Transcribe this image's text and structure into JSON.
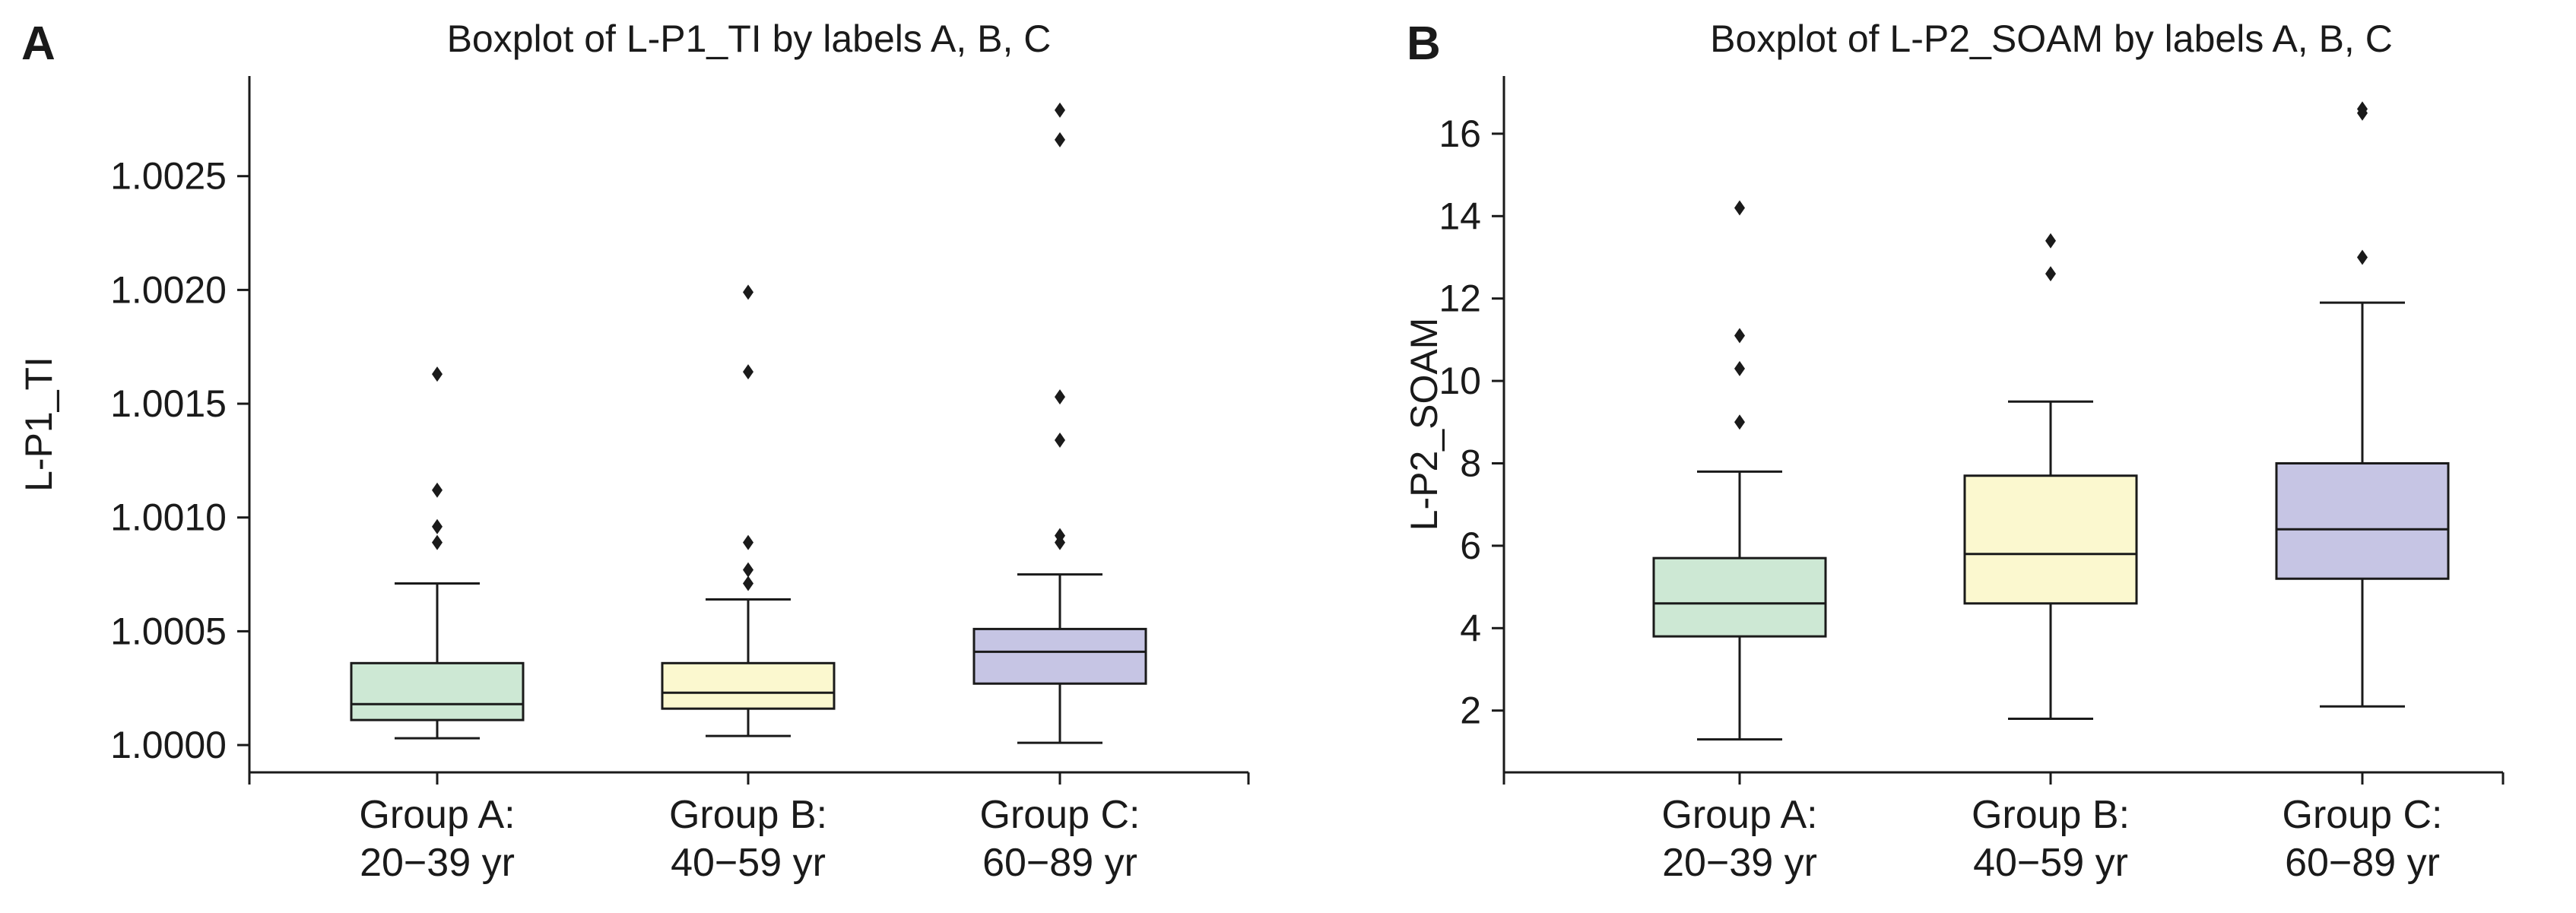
{
  "chart_data": [
    {
      "panel": "A",
      "type": "boxplot",
      "title": "Boxplot of L-P1_TI by labels A, B, C",
      "xlabel": "",
      "ylabel": "L-P1_TI",
      "ylim": [
        0.99988,
        1.00294
      ],
      "yticks": [
        1.0,
        1.0005,
        1.001,
        1.0015,
        1.002,
        1.0025
      ],
      "ytick_labels": [
        "1.0000",
        "1.0005",
        "1.0010",
        "1.0015",
        "1.0020",
        "1.0025"
      ],
      "grid": false,
      "categories": [
        {
          "line1": "Group A:",
          "line2": "20−39 yr"
        },
        {
          "line1": "Group B:",
          "line2": "40−59 yr"
        },
        {
          "line1": "Group C:",
          "line2": "60−89 yr"
        }
      ],
      "boxes": [
        {
          "whislo": 1.00003,
          "q1": 1.00011,
          "med": 1.00018,
          "q3": 1.00036,
          "whishi": 1.00071,
          "fliers": [
            1.00089,
            1.00096,
            1.00112,
            1.00163
          ],
          "color": "#cde8d4"
        },
        {
          "whislo": 1.00004,
          "q1": 1.00016,
          "med": 1.00023,
          "q3": 1.00036,
          "whishi": 1.00064,
          "fliers": [
            1.00071,
            1.00077,
            1.00089,
            1.00164,
            1.00199
          ],
          "color": "#fbf8cf"
        },
        {
          "whislo": 1.00001,
          "q1": 1.00027,
          "med": 1.00041,
          "q3": 1.00051,
          "whishi": 1.00075,
          "fliers": [
            1.00089,
            1.00092,
            1.00134,
            1.00153,
            1.00266,
            1.00279
          ],
          "color": "#c6c5e4"
        }
      ]
    },
    {
      "panel": "B",
      "type": "boxplot",
      "title": "Boxplot of L-P2_SOAM by labels A, B, C",
      "xlabel": "",
      "ylabel": "L-P2_SOAM",
      "ylim": [
        0.5,
        17.4
      ],
      "yticks": [
        2,
        4,
        6,
        8,
        10,
        12,
        14,
        16
      ],
      "ytick_labels": [
        "2",
        "4",
        "6",
        "8",
        "10",
        "12",
        "14",
        "16"
      ],
      "grid": false,
      "categories": [
        {
          "line1": "Group A:",
          "line2": "20−39 yr"
        },
        {
          "line1": "Group B:",
          "line2": "40−59 yr"
        },
        {
          "line1": "Group C:",
          "line2": "60−89 yr"
        }
      ],
      "boxes": [
        {
          "whislo": 1.3,
          "q1": 3.8,
          "med": 4.6,
          "q3": 5.7,
          "whishi": 7.8,
          "fliers": [
            9.0,
            10.3,
            11.1,
            14.2
          ],
          "color": "#cde8d4"
        },
        {
          "whislo": 1.8,
          "q1": 4.6,
          "med": 5.8,
          "q3": 7.7,
          "whishi": 9.5,
          "fliers": [
            12.6,
            13.4
          ],
          "color": "#fbf8cf"
        },
        {
          "whislo": 2.1,
          "q1": 5.2,
          "med": 6.4,
          "q3": 8.0,
          "whishi": 11.9,
          "fliers": [
            13.0,
            16.5,
            16.6
          ],
          "color": "#c6c5e4"
        }
      ]
    }
  ]
}
